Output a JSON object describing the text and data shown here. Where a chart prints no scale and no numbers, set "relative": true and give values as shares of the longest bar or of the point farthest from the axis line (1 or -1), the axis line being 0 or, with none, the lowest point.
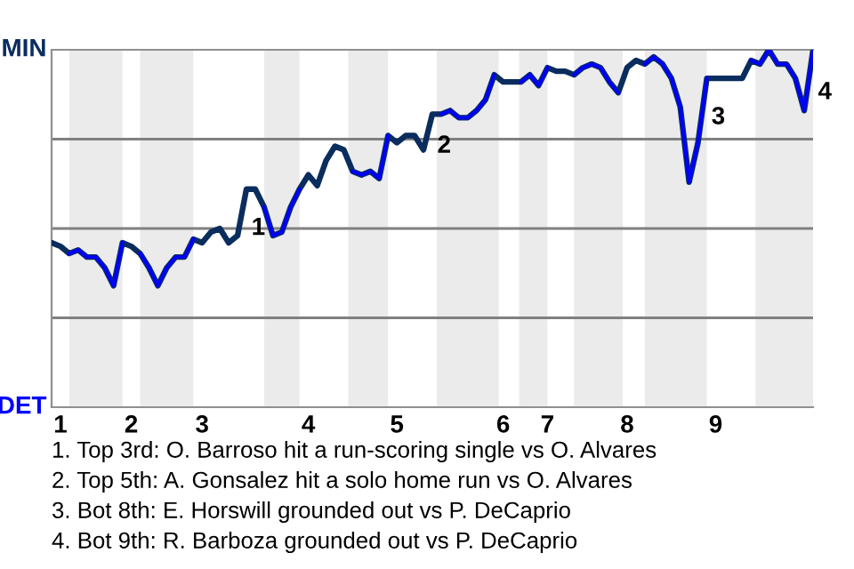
{
  "chart_data": {
    "type": "line",
    "relative": true,
    "tick_labels": "x",
    "categories": [
      null,
      "1",
      null,
      null,
      null,
      null,
      null,
      null,
      null,
      "2",
      null,
      null,
      null,
      null,
      null,
      null,
      null,
      "3",
      null,
      null,
      null,
      null,
      null,
      null,
      null,
      null,
      null,
      null,
      null,
      "4",
      null,
      null,
      null,
      null,
      null,
      null,
      null,
      null,
      null,
      "5",
      null,
      null,
      null,
      null,
      null,
      null,
      null,
      null,
      null,
      null,
      null,
      "6",
      null,
      null,
      null,
      null,
      "7",
      null,
      null,
      null,
      null,
      null,
      null,
      null,
      null,
      "8",
      null,
      null,
      null,
      null,
      null,
      null,
      null,
      null,
      null,
      "9",
      null,
      null,
      null,
      null,
      null,
      null,
      null,
      null,
      null,
      null,
      null
    ],
    "series": [
      {
        "color": "#0a2d5e",
        "values": [
          0.46,
          0.45,
          0.43,
          0.44,
          0.42,
          0.42,
          0.39,
          0.34,
          0.46,
          0.45,
          0.43,
          0.39,
          0.34,
          0.39,
          0.42,
          0.42,
          0.47,
          0.46,
          0.49,
          0.5,
          0.46,
          0.48,
          0.61,
          0.61,
          0.56,
          0.48,
          0.49,
          0.56,
          0.61,
          0.65,
          0.62,
          0.69,
          0.73,
          0.72,
          0.66,
          0.65,
          0.66,
          0.64,
          0.76,
          0.74,
          0.76,
          0.76,
          0.72,
          0.82,
          0.82,
          0.83,
          0.81,
          0.81,
          0.83,
          0.86,
          0.93,
          0.91,
          0.91,
          0.91,
          0.93,
          0.9,
          0.95,
          0.94,
          0.94,
          0.93,
          0.95,
          0.96,
          0.95,
          0.91,
          0.88,
          0.95,
          0.97,
          0.96,
          0.98,
          0.96,
          0.92,
          0.84,
          0.63,
          0.74,
          0.92,
          0.92,
          0.92,
          0.92,
          0.92,
          0.97,
          0.96,
          1,
          0.96,
          0.96,
          0.92,
          0.83,
          1
        ]
      },
      {
        "color": "#0000ff",
        "values": [
          null,
          null,
          0.43,
          0.44,
          0.42,
          0.42,
          0.39,
          0.34,
          0.46,
          null,
          0.43,
          0.39,
          0.34,
          0.39,
          0.42,
          0.42,
          0.47,
          null,
          null,
          null,
          null,
          null,
          null,
          null,
          0.56,
          0.48,
          0.49,
          0.56,
          0.61,
          null,
          null,
          null,
          null,
          null,
          0.66,
          0.65,
          0.66,
          0.64,
          0.76,
          null,
          null,
          null,
          null,
          null,
          0.82,
          0.83,
          0.81,
          0.81,
          0.83,
          0.86,
          0.93,
          null,
          null,
          0.91,
          0.93,
          0.9,
          0.95,
          null,
          null,
          0.93,
          0.95,
          0.96,
          0.95,
          0.91,
          0.88,
          null,
          null,
          0.96,
          0.98,
          0.96,
          0.92,
          0.84,
          0.63,
          0.74,
          0.92,
          null,
          null,
          null,
          null,
          0.97,
          0.96,
          1,
          0.96,
          0.96,
          0.92,
          0.83,
          1
        ]
      }
    ],
    "line_style": "solid",
    "ref_lines": [
      {
        "axis": "y",
        "value": 0.25,
        "color": "#808080"
      },
      {
        "axis": "y",
        "value": 0.5,
        "color": "#808080"
      },
      {
        "axis": "y",
        "value": 0.75,
        "color": "#808080"
      }
    ],
    "annotations": [
      "MIN",
      "DET",
      "1",
      "2",
      "3",
      "4",
      "1. Top 3rd: O. Barroso hit a run-scoring single vs O. Alvares",
      "2. Top 5th: A. Gonsalez hit a solo home run vs O. Alvares",
      "3. Bot 8th: E. Horswill grounded out vs P. DeCaprio",
      "4. Bot 9th: R. Barboza grounded out vs P. DeCaprio"
    ]
  }
}
